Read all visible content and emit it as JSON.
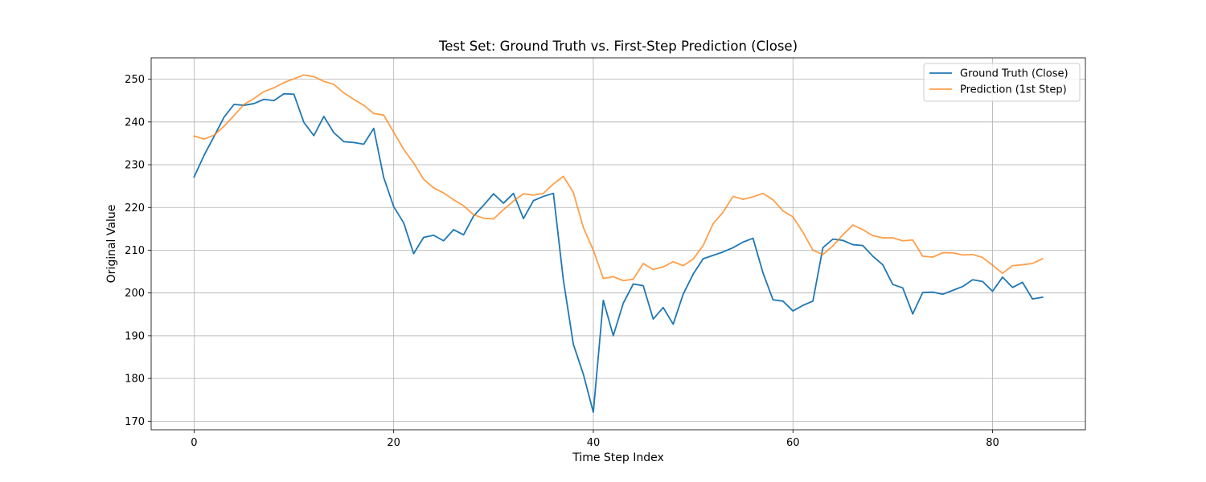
{
  "chart_data": {
    "type": "line",
    "title": "Test Set: Ground Truth vs. First-Step Prediction (Close)",
    "xlabel": "Time Step Index",
    "ylabel": "Original Value",
    "xlim": [
      -4.3,
      89.3
    ],
    "ylim": [
      168.0,
      255.0
    ],
    "xticks": [
      0,
      20,
      40,
      60,
      80
    ],
    "yticks": [
      170,
      180,
      190,
      200,
      210,
      220,
      230,
      240,
      250
    ],
    "grid": true,
    "legend_position": "top-right",
    "x": [
      0,
      1,
      2,
      3,
      4,
      5,
      6,
      7,
      8,
      9,
      10,
      11,
      12,
      13,
      14,
      15,
      16,
      17,
      18,
      19,
      20,
      21,
      22,
      23,
      24,
      25,
      26,
      27,
      28,
      29,
      30,
      31,
      32,
      33,
      34,
      35,
      36,
      37,
      38,
      39,
      40,
      41,
      42,
      43,
      44,
      45,
      46,
      47,
      48,
      49,
      50,
      51,
      52,
      53,
      54,
      55,
      56,
      57,
      58,
      59,
      60,
      61,
      62,
      63,
      64,
      65,
      66,
      67,
      68,
      69,
      70,
      71,
      72,
      73,
      74,
      75,
      76,
      77,
      78,
      79,
      80,
      81,
      82,
      83,
      84,
      85
    ],
    "series": [
      {
        "name": "Ground Truth (Close)",
        "color": "#1f77b4",
        "values": [
          227.1,
          232.2,
          236.6,
          241.1,
          244.1,
          243.9,
          244.3,
          245.3,
          245.0,
          246.6,
          246.5,
          239.9,
          236.8,
          241.3,
          237.5,
          235.4,
          235.2,
          234.8,
          238.5,
          227.0,
          220.2,
          216.4,
          209.2,
          213.0,
          213.5,
          212.2,
          214.8,
          213.6,
          218.0,
          220.5,
          223.2,
          221.0,
          223.3,
          217.4,
          221.6,
          222.6,
          223.3,
          203.0,
          188.0,
          181.0,
          172.1,
          198.3,
          190.0,
          197.6,
          202.1,
          201.7,
          193.9,
          196.6,
          192.7,
          199.7,
          204.4,
          208.0,
          208.8,
          209.6,
          210.6,
          211.9,
          212.8,
          204.7,
          198.4,
          198.1,
          195.8,
          197.1,
          198.1,
          210.6,
          212.6,
          212.3,
          211.3,
          211.1,
          208.6,
          206.6,
          202.0,
          201.2,
          195.1,
          200.1,
          200.2,
          199.7,
          200.6,
          201.5,
          203.1,
          202.7,
          200.4,
          203.7,
          201.3,
          202.5,
          198.6,
          199.0
        ]
      },
      {
        "name": "Prediction (1st Step)",
        "color": "#ff7f0e",
        "values": [
          236.7,
          236.0,
          236.9,
          239.0,
          241.5,
          244.1,
          245.5,
          247.1,
          248.0,
          249.2,
          250.1,
          251.0,
          250.6,
          249.5,
          248.8,
          246.8,
          245.3,
          243.9,
          242.0,
          241.6,
          237.6,
          233.6,
          230.4,
          226.6,
          224.6,
          223.4,
          221.8,
          220.4,
          218.3,
          217.5,
          217.3,
          219.5,
          221.5,
          223.2,
          222.9,
          223.3,
          225.5,
          227.3,
          223.5,
          215.3,
          210.0,
          203.4,
          203.8,
          202.9,
          203.2,
          206.9,
          205.5,
          206.1,
          207.3,
          206.4,
          207.9,
          211.1,
          216.2,
          218.9,
          222.6,
          221.9,
          222.5,
          223.3,
          221.8,
          219.2,
          217.8,
          214.2,
          210.0,
          209.0,
          211.0,
          213.6,
          215.9,
          214.8,
          213.4,
          212.9,
          212.9,
          212.2,
          212.4,
          208.6,
          208.4,
          209.4,
          209.4,
          208.9,
          209.0,
          208.3,
          206.5,
          204.6,
          206.4,
          206.6,
          206.9,
          208.0
        ]
      }
    ]
  }
}
